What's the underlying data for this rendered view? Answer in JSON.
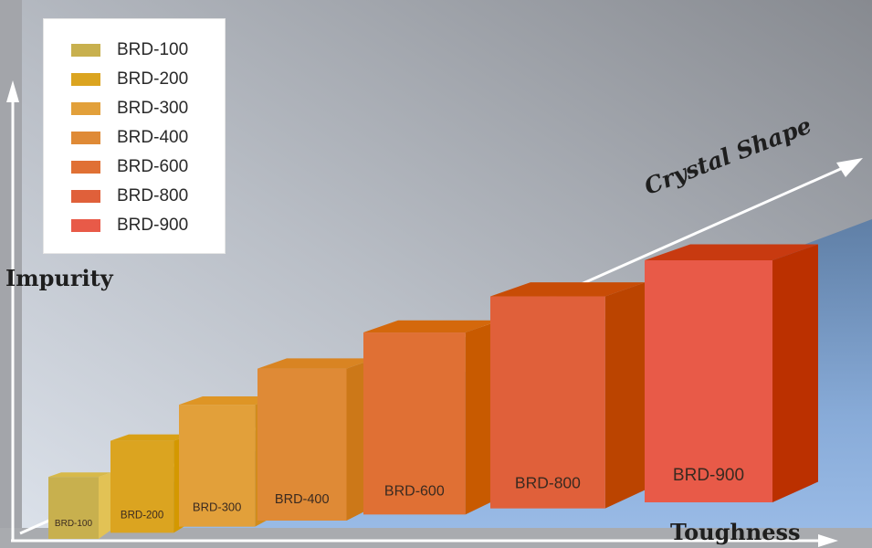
{
  "chart_data": {
    "type": "bar",
    "style": "3d-column",
    "title": "",
    "xlabel": "Toughness",
    "ylabel": "Impurity",
    "zlabel": "Crystal Shape",
    "categories": [
      "BRD-100",
      "BRD-200",
      "BRD-300",
      "BRD-400",
      "BRD-600",
      "BRD-800",
      "BRD-900"
    ],
    "values": [
      1,
      2,
      3,
      4,
      5,
      6,
      7
    ],
    "value_note": "relative rank (no numeric axis shown)",
    "legend": {
      "position": "top-left",
      "entries": [
        "BRD-100",
        "BRD-200",
        "BRD-300",
        "BRD-400",
        "BRD-600",
        "BRD-800",
        "BRD-900"
      ]
    },
    "colors": [
      "#c8b04e",
      "#dba420",
      "#e2a03a",
      "#df8a36",
      "#e07034",
      "#e0603a",
      "#e85a48"
    ],
    "side_colors": [
      "#e2c255",
      "#d49800",
      "#d28c1c",
      "#cc7818",
      "#c85a00",
      "#bb4400",
      "#bb3000"
    ],
    "top_colors": [
      "#d7b94a",
      "#d9a015",
      "#de9525",
      "#d98422",
      "#d4680c",
      "#c84c06",
      "#c83a10"
    ],
    "grid": false
  }
}
